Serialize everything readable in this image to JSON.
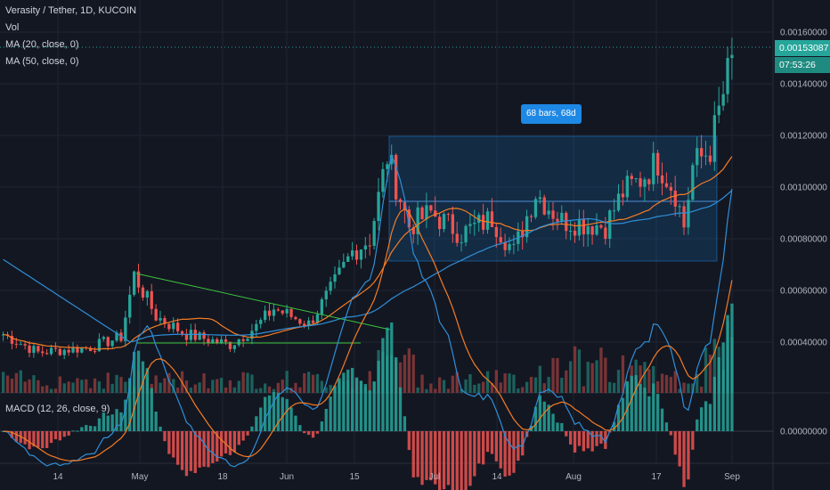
{
  "chart_header": {
    "symbol": "Verasity / Tether, 1D, KUCOIN",
    "indicators": [
      "Vol",
      "MA (20, close, 0)",
      "MA (50, close, 0)"
    ]
  },
  "macd_legend": "MACD (12, 26, close, 9)",
  "range_badge": "68 bars, 68d",
  "price_axis": {
    "ticks": [
      "0.00160000",
      "0.00140000",
      "0.00120000",
      "0.00100000",
      "0.00080000",
      "0.00060000",
      "0.00040000"
    ],
    "current_price": "0.00153087",
    "countdown": "07:53:26",
    "macd_zero": "0.00000000"
  },
  "time_axis": {
    "labels": [
      "14",
      "May",
      "18",
      "Jun",
      "15",
      "Jul",
      "14",
      "Aug",
      "17",
      "Sep"
    ]
  },
  "colors": {
    "background": "#131722",
    "up": "#26a69a",
    "down": "#ef5350",
    "ma20": "#f57c24",
    "ma50": "#2f8fd8",
    "trendline": "#3cc43c",
    "range_box": "#1e88e5",
    "price_tag": "#26a69a"
  }
}
